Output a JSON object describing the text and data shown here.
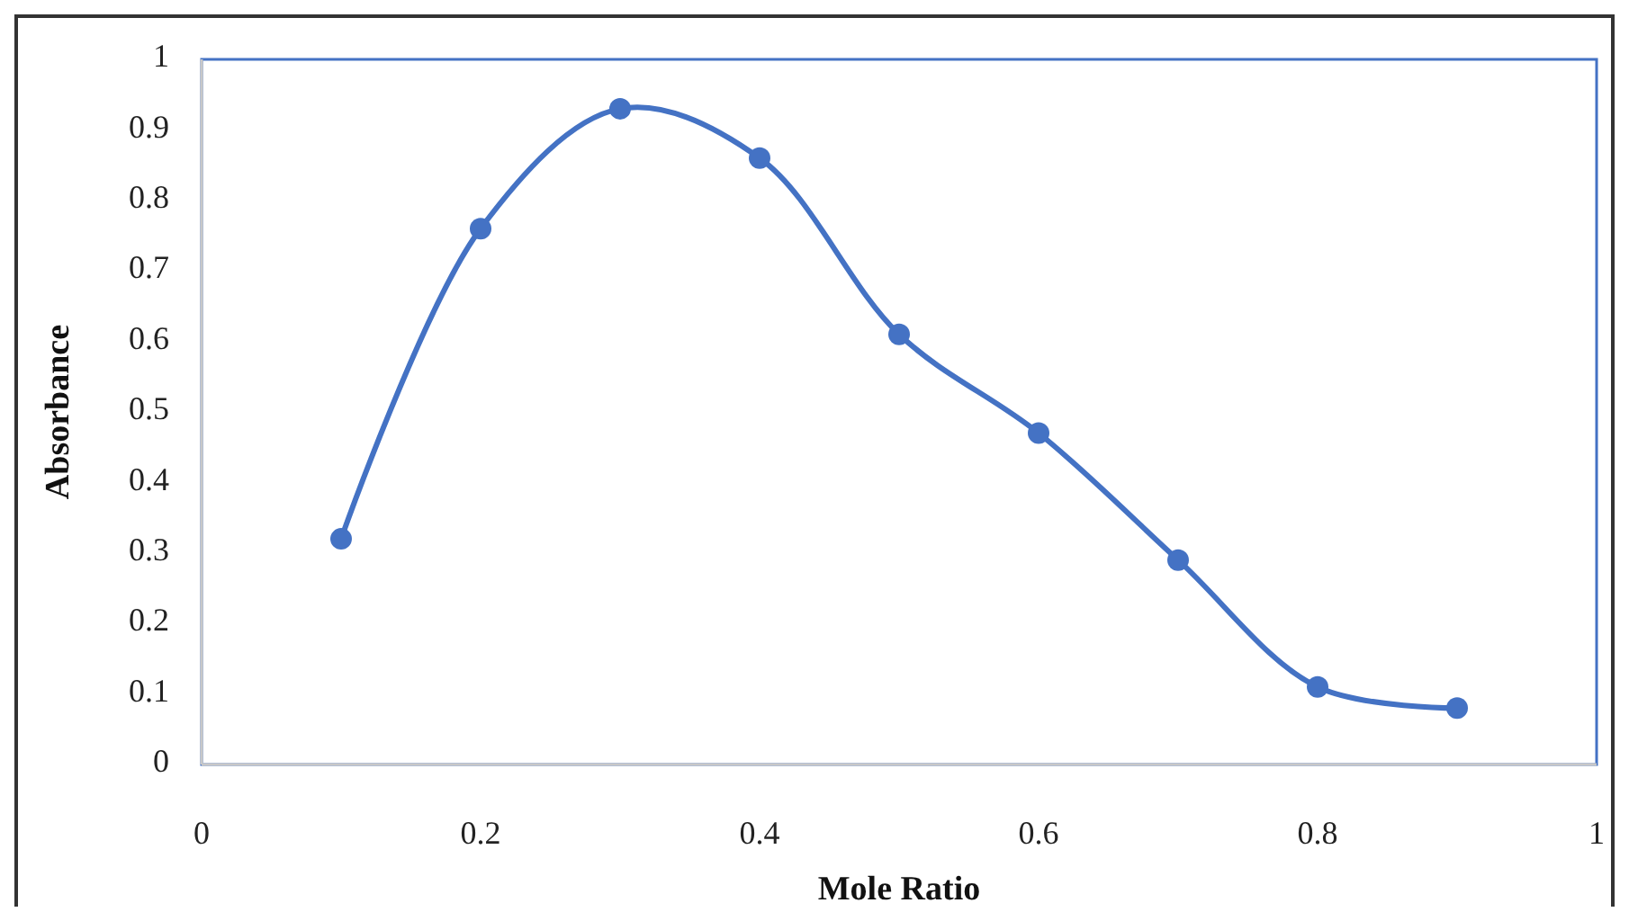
{
  "chart_data": {
    "type": "line",
    "xlabel": "Mole Ratio",
    "ylabel": "Absorbance",
    "x": [
      0.1,
      0.2,
      0.3,
      0.4,
      0.5,
      0.6,
      0.7,
      0.8,
      0.9
    ],
    "series": [
      {
        "color": "#4472c4",
        "values": [
          0.32,
          0.76,
          0.93,
          0.86,
          0.61,
          0.47,
          0.29,
          0.11,
          0.08
        ]
      }
    ],
    "xlim": [
      0,
      1
    ],
    "xticks": [
      0,
      0.2,
      0.4,
      0.6,
      0.8,
      1
    ],
    "ylim": [
      0,
      1
    ],
    "yticks": [
      0,
      0.1,
      0.2,
      0.3,
      0.4,
      0.5,
      0.6,
      0.7,
      0.8,
      0.9,
      1
    ],
    "grid": false,
    "marker": "circle",
    "line_style": "solid"
  }
}
